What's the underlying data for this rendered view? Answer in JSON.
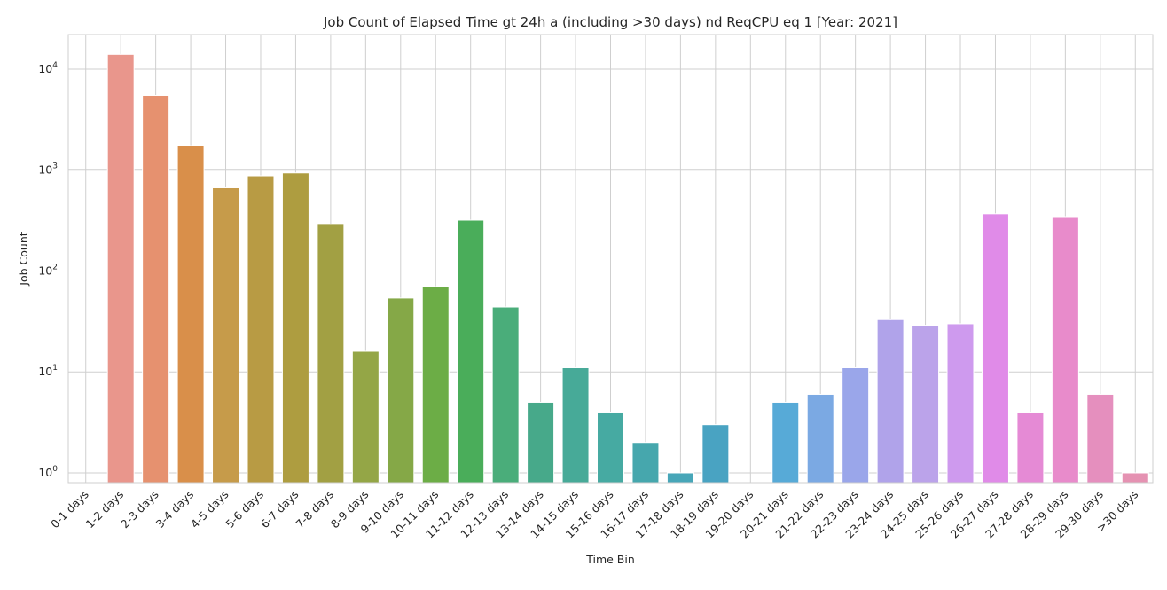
{
  "chart_data": {
    "type": "bar",
    "title": "Job Count of Elapsed Time gt 24h a (including >30 days) nd ReqCPU eq 1 [Year: 2021]",
    "xlabel": "Time Bin",
    "ylabel": "Job Count",
    "yscale": "log",
    "ylim": [
      0.8,
      22000
    ],
    "yticks": [
      {
        "value": 1,
        "label": "10",
        "exp": "0"
      },
      {
        "value": 10,
        "label": "10",
        "exp": "1"
      },
      {
        "value": 100,
        "label": "10",
        "exp": "2"
      },
      {
        "value": 1000,
        "label": "10",
        "exp": "3"
      },
      {
        "value": 10000,
        "label": "10",
        "exp": "4"
      }
    ],
    "grid": true,
    "legend": "none",
    "categories": [
      "0-1 days",
      "1-2 days",
      "2-3 days",
      "3-4 days",
      "4-5 days",
      "5-6 days",
      "6-7 days",
      "7-8 days",
      "8-9 days",
      "9-10 days",
      "10-11 days",
      "11-12 days",
      "12-13 days",
      "13-14 days",
      "14-15 days",
      "15-16 days",
      "16-17 days",
      "17-18 days",
      "18-19 days",
      "19-20 days",
      "20-21 days",
      "21-22 days",
      "22-23 days",
      "23-24 days",
      "24-25 days",
      "25-26 days",
      "26-27 days",
      "27-28 days",
      "28-29 days",
      "29-30 days",
      ">30 days"
    ],
    "values": [
      0,
      14000,
      5500,
      1750,
      670,
      880,
      940,
      290,
      16,
      54,
      70,
      320,
      44,
      5,
      11,
      4,
      2,
      1,
      3,
      0,
      5,
      6,
      11,
      33,
      29,
      30,
      370,
      4,
      340,
      6,
      1
    ],
    "colors": [
      "#e9968c",
      "#e9968c",
      "#e6916f",
      "#d98f4a",
      "#c69b4a",
      "#b89b44",
      "#ae9d40",
      "#a2a043",
      "#94a646",
      "#85a847",
      "#6cad46",
      "#4aad5a",
      "#4aad7a",
      "#47a98a",
      "#47aa98",
      "#46aaa2",
      "#46a7ad",
      "#47a6b8",
      "#49a3c2",
      "#4faed6",
      "#57aad7",
      "#7ba9e3",
      "#9aa6ea",
      "#b0a3ea",
      "#bba3ea",
      "#ce9aee",
      "#e08be8",
      "#e58ad5",
      "#e88bcb",
      "#e58fbe",
      "#e592b2"
    ]
  }
}
